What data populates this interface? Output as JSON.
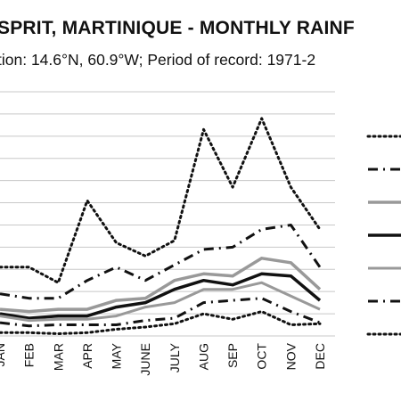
{
  "chart_data": {
    "type": "line",
    "title": "SPRIT, MARTINIQUE - MONTHLY RAINF",
    "subtitle": "tion: 14.6°N, 60.9°W; Period of record: 1971-2",
    "categories": [
      "JAN",
      "FEB",
      "MAR",
      "APR",
      "MAY",
      "JUNE",
      "JULY",
      "AUG",
      "SEP",
      "OCT",
      "NOV",
      "DEC"
    ],
    "ylim": [
      0,
      11
    ],
    "grid": true,
    "legend": "right",
    "series": [
      {
        "style": "dotted",
        "color": "#111111",
        "width": 3,
        "values": [
          3.1,
          3.1,
          2.4,
          6.1,
          4.2,
          3.6,
          4.3,
          9.3,
          6.7,
          9.8,
          6.7,
          4.8
        ]
      },
      {
        "style": "dashdot",
        "color": "#111111",
        "width": 3,
        "values": [
          1.9,
          1.7,
          1.7,
          2.5,
          3.1,
          2.5,
          3.2,
          3.9,
          4.0,
          4.8,
          5.0,
          3.1
        ]
      },
      {
        "style": "solid",
        "color": "#999999",
        "width": 3.5,
        "values": [
          1.2,
          1.1,
          1.2,
          1.2,
          1.6,
          1.7,
          2.5,
          2.8,
          2.7,
          3.5,
          3.3,
          2.1
        ]
      },
      {
        "style": "solid",
        "color": "#111111",
        "width": 3.5,
        "values": [
          1.0,
          0.8,
          0.9,
          0.9,
          1.3,
          1.5,
          2.1,
          2.5,
          2.3,
          2.8,
          2.7,
          1.6
        ]
      },
      {
        "style": "solid",
        "color": "#999999",
        "width": 3,
        "values": [
          0.9,
          0.7,
          0.75,
          0.75,
          0.9,
          1.3,
          1.5,
          2.1,
          2.1,
          2.4,
          1.8,
          1.2
        ]
      },
      {
        "style": "dashdot",
        "color": "#111111",
        "width": 3,
        "values": [
          0.6,
          0.45,
          0.5,
          0.5,
          0.5,
          0.7,
          0.8,
          1.5,
          1.6,
          1.7,
          1.1,
          0.6
        ]
      },
      {
        "style": "dotted",
        "color": "#111111",
        "width": 3,
        "values": [
          0.15,
          0.15,
          0.1,
          0.15,
          0.3,
          0.4,
          0.55,
          1.0,
          0.75,
          1.1,
          0.5,
          0.55
        ]
      }
    ]
  }
}
